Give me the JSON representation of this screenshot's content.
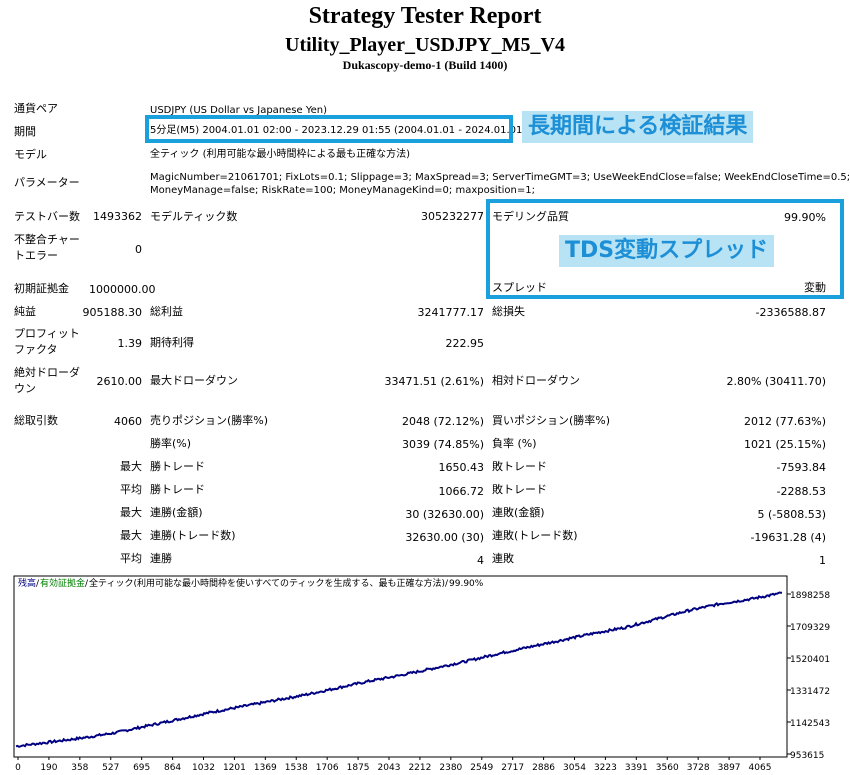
{
  "header": {
    "title": "Strategy Tester Report",
    "subtitle": "Utility_Player_USDJPY_M5_V4",
    "server": "Dukascopy-demo-1 (Build 1400)"
  },
  "info": {
    "pair_label": "通貨ペア",
    "pair_value": "USDJPY (US Dollar vs Japanese Yen)",
    "period_label": "期間",
    "period_value": "5分足(M5) 2004.01.01 02:00 - 2023.12.29 01:55 (2004.01.01 - 2024.01.01)",
    "model_label": "モデル",
    "model_value": "全ティック (利用可能な最小時間枠による最も正確な方法)",
    "params_label": "パラメーター",
    "params_line1": "MagicNumber=21061701; FixLots=0.1; Slippage=3; MaxSpread=3; ServerTimeGMT=3; UseWeekEndClose=false; WeekEndCloseTime=0.5;",
    "params_line2": "MoneyManage=false; RiskRate=100; MoneyManageKind=0; maxposition=1;"
  },
  "annotations": {
    "period_note": "長期間による検証結果",
    "spread_note": "TDS変動スプレッド"
  },
  "stats": {
    "bars_label": "テストバー数",
    "bars_value": "1493362",
    "ticks_label": "モデルティック数",
    "ticks_value": "305232277",
    "quality_label": "モデリング品質",
    "quality_value": "99.90%",
    "mismatch_label_1": "不整合チャー",
    "mismatch_label_2": "トエラー",
    "mismatch_value": "0",
    "spread_label": "スプレッド",
    "spread_value": "変動",
    "deposit_label": "初期証拠金",
    "deposit_value": "1000000.00",
    "net_label": "純益",
    "net_value": "905188.30",
    "gross_profit_label": "総利益",
    "gross_profit_value": "3241777.17",
    "gross_loss_label": "総損失",
    "gross_loss_value": "-2336588.87",
    "pf_label_1": "プロフィット",
    "pf_label_2": "ファクタ",
    "pf_value": "1.39",
    "expected_label": "期待利得",
    "expected_value": "222.95",
    "abs_dd_label_1": "絶対ドローダ",
    "abs_dd_label_2": "ウン",
    "abs_dd_value": "2610.00",
    "max_dd_label": "最大ドローダウン",
    "max_dd_value": "33471.51 (2.61%)",
    "rel_dd_label": "相対ドローダウン",
    "rel_dd_value": "2.80% (30411.70)",
    "trades_label": "総取引数",
    "trades_value": "4060",
    "short_label": "売りポジション(勝率%)",
    "short_value": "2048 (72.12%)",
    "long_label": "買いポジション(勝率%)",
    "long_value": "2012 (77.63%)",
    "win_pct_label": "勝率(%)",
    "win_pct_value": "3039 (74.85%)",
    "loss_pct_label": "負率 (%)",
    "loss_pct_value": "1021 (25.15%)",
    "max_label": "最大",
    "avg_label": "平均",
    "win_trade_label": "勝トレード",
    "loss_trade_label": "敗トレード",
    "max_win_value": "1650.43",
    "max_loss_value": "-7593.84",
    "avg_win_value": "1066.72",
    "avg_loss_value": "-2288.53",
    "consec_win_amt_label": "連勝(金額)",
    "consec_win_amt_value": "30 (32630.00)",
    "consec_loss_amt_label": "連敗(金額)",
    "consec_loss_amt_value": "5 (-5808.53)",
    "consec_win_cnt_label": "連勝(トレード数)",
    "consec_win_cnt_value": "32630.00 (30)",
    "consec_loss_cnt_label": "連敗(トレード数)",
    "consec_loss_cnt_value": "-19631.28 (4)",
    "avg_consec_win_label": "連勝",
    "avg_consec_win_value": "4",
    "avg_consec_loss_label": "連敗",
    "avg_consec_loss_value": "1"
  },
  "chart_data": {
    "type": "line",
    "legend": {
      "balance": "残高",
      "sep1": " / ",
      "equity": "有効証拠金",
      "sep2": " / ",
      "model": "全ティック(利用可能な最小時間枠を使いすべてのティックを生成する、最も正確な方法)",
      "sep3": " / ",
      "quality": "99.90%"
    },
    "x_ticks": [
      "0",
      "190",
      "358",
      "527",
      "695",
      "864",
      "1032",
      "1201",
      "1369",
      "1538",
      "1706",
      "1875",
      "2043",
      "2212",
      "2380",
      "2549",
      "2717",
      "2886",
      "3054",
      "3223",
      "3391",
      "3560",
      "3728",
      "3897",
      "4065"
    ],
    "y_ticks": [
      "1898258",
      "1709329",
      "1520401",
      "1331472",
      "1142543",
      "953615"
    ],
    "xlim": [
      0,
      4060
    ],
    "ylim": [
      953615,
      1898258
    ],
    "colors": {
      "line": "#000080",
      "axis": "#000000",
      "grid": "#c8c8c8"
    },
    "series": [
      {
        "x": [
          0,
          190,
          358,
          527,
          695,
          864,
          1032,
          1201,
          1369,
          1538,
          1706,
          1875,
          2043,
          2212,
          2380,
          2549,
          2717,
          2886,
          3054,
          3223,
          3391,
          3560,
          3728,
          3897,
          4060
        ],
        "values": [
          1000000,
          1026000,
          1050000,
          1080000,
          1120000,
          1160000,
          1200000,
          1235000,
          1270000,
          1305000,
          1345000,
          1385000,
          1420000,
          1460000,
          1500000,
          1545000,
          1585000,
          1625000,
          1665000,
          1700000,
          1750000,
          1800000,
          1840000,
          1870000,
          1905188
        ]
      }
    ]
  }
}
